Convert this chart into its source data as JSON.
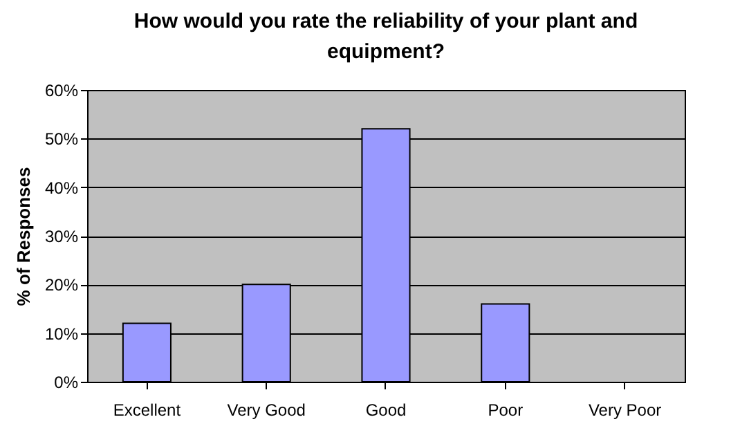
{
  "chart_data": {
    "type": "bar",
    "title": [
      "How would you rate the reliability of your plant and",
      "equipment?"
    ],
    "ylabel": "% of Responses",
    "categories": [
      "Excellent",
      "Very Good",
      "Good",
      "Poor",
      "Very Poor"
    ],
    "values": [
      12,
      20,
      52,
      16,
      0
    ],
    "color": "#9999ff",
    "ylim": [
      0,
      60
    ],
    "yticks": [
      {
        "value": 0,
        "label": "0%"
      },
      {
        "value": 10,
        "label": "10%"
      },
      {
        "value": 20,
        "label": "20%"
      },
      {
        "value": 30,
        "label": "30%"
      },
      {
        "value": 40,
        "label": "40%"
      },
      {
        "value": 50,
        "label": "50%"
      },
      {
        "value": 60,
        "label": "60%"
      }
    ],
    "grid": "y"
  }
}
